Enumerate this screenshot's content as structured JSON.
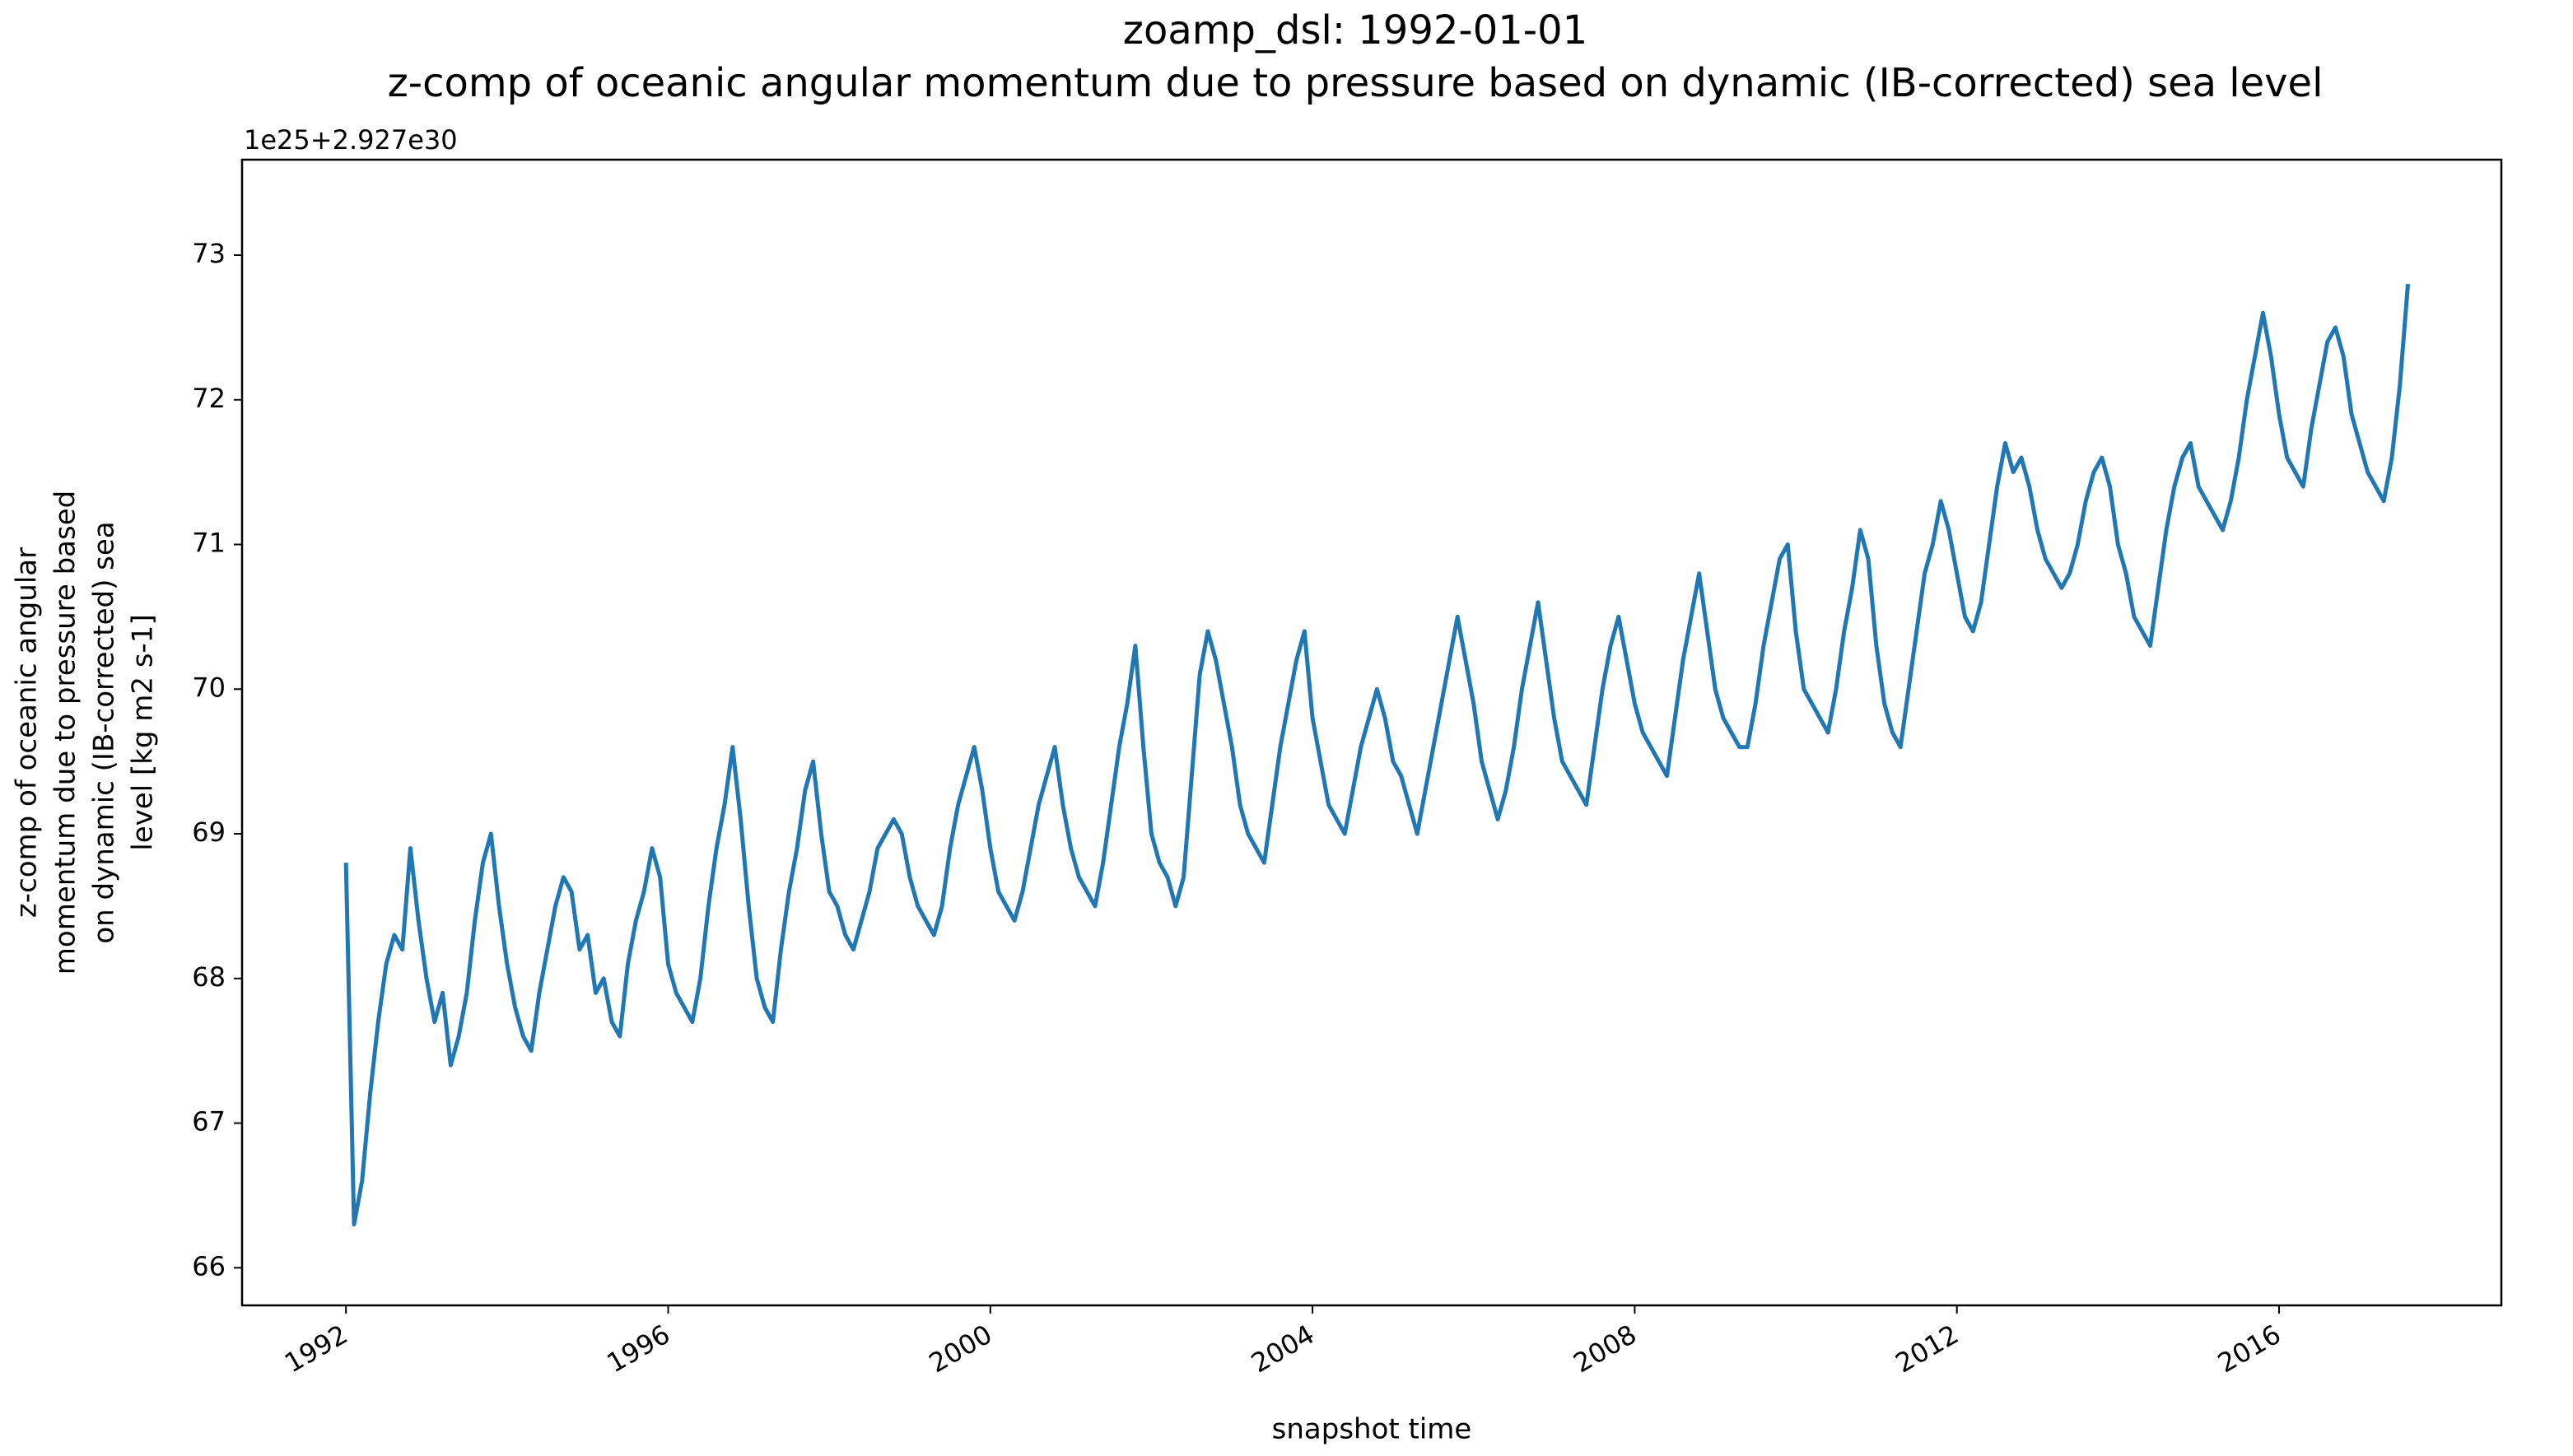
{
  "chart_data": {
    "type": "line",
    "title": "zoamp_dsl: 1992-01-01",
    "subtitle": "z-comp of oceanic angular momentum due to pressure based on dynamic (IB-corrected) sea level",
    "offset_label": "1e25+2.927e30",
    "xlabel": "snapshot time",
    "ylabel": [
      "z-comp of oceanic angular",
      "momentum due to pressure based",
      "on dynamic (IB-corrected) sea",
      "level [kg m2 s-1]"
    ],
    "color": "#1f77b4",
    "xlim": [
      1990.71,
      2018.76
    ],
    "ylim": [
      65.74,
      73.66
    ],
    "xticks": [
      1992,
      1996,
      2000,
      2004,
      2008,
      2012,
      2016
    ],
    "yticks": [
      66,
      67,
      68,
      69,
      70,
      71,
      72,
      73
    ],
    "x": [
      1992.0,
      1992.1,
      1992.2,
      1992.3,
      1992.4,
      1992.5,
      1992.6,
      1992.7,
      1992.8,
      1992.9,
      1993.0,
      1993.1,
      1993.2,
      1993.3,
      1993.4,
      1993.5,
      1993.6,
      1993.7,
      1993.8,
      1993.9,
      1994.0,
      1994.1,
      1994.2,
      1994.3,
      1994.4,
      1994.5,
      1994.6,
      1994.7,
      1994.8,
      1994.9,
      1995.0,
      1995.1,
      1995.2,
      1995.3,
      1995.4,
      1995.5,
      1995.6,
      1995.7,
      1995.8,
      1995.9,
      1996.0,
      1996.1,
      1996.2,
      1996.3,
      1996.4,
      1996.5,
      1996.6,
      1996.7,
      1996.8,
      1996.9,
      1997.0,
      1997.1,
      1997.2,
      1997.3,
      1997.4,
      1997.5,
      1997.6,
      1997.7,
      1997.8,
      1997.9,
      1998.0,
      1998.1,
      1998.2,
      1998.3,
      1998.4,
      1998.5,
      1998.6,
      1998.7,
      1998.8,
      1998.9,
      1999.0,
      1999.1,
      1999.2,
      1999.3,
      1999.4,
      1999.5,
      1999.6,
      1999.7,
      1999.8,
      1999.9,
      2000.0,
      2000.1,
      2000.2,
      2000.3,
      2000.4,
      2000.5,
      2000.6,
      2000.7,
      2000.8,
      2000.9,
      2001.0,
      2001.1,
      2001.2,
      2001.3,
      2001.4,
      2001.5,
      2001.6,
      2001.7,
      2001.8,
      2001.9,
      2002.0,
      2002.1,
      2002.2,
      2002.3,
      2002.4,
      2002.5,
      2002.6,
      2002.7,
      2002.8,
      2002.9,
      2003.0,
      2003.1,
      2003.2,
      2003.3,
      2003.4,
      2003.5,
      2003.6,
      2003.7,
      2003.8,
      2003.9,
      2004.0,
      2004.1,
      2004.2,
      2004.3,
      2004.4,
      2004.5,
      2004.6,
      2004.7,
      2004.8,
      2004.9,
      2005.0,
      2005.1,
      2005.2,
      2005.3,
      2005.4,
      2005.5,
      2005.6,
      2005.7,
      2005.8,
      2005.9,
      2006.0,
      2006.1,
      2006.2,
      2006.3,
      2006.4,
      2006.5,
      2006.6,
      2006.7,
      2006.8,
      2006.9,
      2007.0,
      2007.1,
      2007.2,
      2007.3,
      2007.4,
      2007.5,
      2007.6,
      2007.7,
      2007.8,
      2007.9,
      2008.0,
      2008.1,
      2008.2,
      2008.3,
      2008.4,
      2008.5,
      2008.6,
      2008.7,
      2008.8,
      2008.9,
      2009.0,
      2009.1,
      2009.2,
      2009.3,
      2009.4,
      2009.5,
      2009.6,
      2009.7,
      2009.8,
      2009.9,
      2010.0,
      2010.1,
      2010.2,
      2010.3,
      2010.4,
      2010.5,
      2010.6,
      2010.7,
      2010.8,
      2010.9,
      2011.0,
      2011.1,
      2011.2,
      2011.3,
      2011.4,
      2011.5,
      2011.6,
      2011.7,
      2011.8,
      2011.9,
      2012.0,
      2012.1,
      2012.2,
      2012.3,
      2012.4,
      2012.5,
      2012.6,
      2012.7,
      2012.8,
      2012.9,
      2013.0,
      2013.1,
      2013.2,
      2013.3,
      2013.4,
      2013.5,
      2013.6,
      2013.7,
      2013.8,
      2013.9,
      2014.0,
      2014.1,
      2014.2,
      2014.3,
      2014.4,
      2014.5,
      2014.6,
      2014.7,
      2014.8,
      2014.9,
      2015.0,
      2015.1,
      2015.2,
      2015.3,
      2015.4,
      2015.5,
      2015.6,
      2015.7,
      2015.8,
      2015.9,
      2016.0,
      2016.1,
      2016.2,
      2016.3,
      2016.4,
      2016.5,
      2016.6,
      2016.7,
      2016.8,
      2016.9,
      2017.0,
      2017.1,
      2017.2,
      2017.3,
      2017.4,
      2017.5,
      2017.6
    ],
    "values": [
      68.8,
      66.3,
      66.6,
      67.2,
      67.7,
      68.1,
      68.3,
      68.2,
      68.9,
      68.4,
      68.0,
      67.7,
      67.9,
      67.4,
      67.6,
      67.9,
      68.4,
      68.8,
      69.0,
      68.5,
      68.1,
      67.8,
      67.6,
      67.5,
      67.9,
      68.2,
      68.5,
      68.7,
      68.6,
      68.2,
      68.3,
      67.9,
      68.0,
      67.7,
      67.6,
      68.1,
      68.4,
      68.6,
      68.9,
      68.7,
      68.1,
      67.9,
      67.8,
      67.7,
      68.0,
      68.5,
      68.9,
      69.2,
      69.6,
      69.1,
      68.5,
      68.0,
      67.8,
      67.7,
      68.2,
      68.6,
      68.9,
      69.3,
      69.5,
      69.0,
      68.6,
      68.5,
      68.3,
      68.2,
      68.4,
      68.6,
      68.9,
      69.0,
      69.1,
      69.0,
      68.7,
      68.5,
      68.4,
      68.3,
      68.5,
      68.9,
      69.2,
      69.4,
      69.6,
      69.3,
      68.9,
      68.6,
      68.5,
      68.4,
      68.6,
      68.9,
      69.2,
      69.4,
      69.6,
      69.2,
      68.9,
      68.7,
      68.6,
      68.5,
      68.8,
      69.2,
      69.6,
      69.9,
      70.3,
      69.6,
      69.0,
      68.8,
      68.7,
      68.5,
      68.7,
      69.4,
      70.1,
      70.4,
      70.2,
      69.9,
      69.6,
      69.2,
      69.0,
      68.9,
      68.8,
      69.2,
      69.6,
      69.9,
      70.2,
      70.4,
      69.8,
      69.5,
      69.2,
      69.1,
      69.0,
      69.3,
      69.6,
      69.8,
      70.0,
      69.8,
      69.5,
      69.4,
      69.2,
      69.0,
      69.3,
      69.6,
      69.9,
      70.2,
      70.5,
      70.2,
      69.9,
      69.5,
      69.3,
      69.1,
      69.3,
      69.6,
      70.0,
      70.3,
      70.6,
      70.2,
      69.8,
      69.5,
      69.4,
      69.3,
      69.2,
      69.6,
      70.0,
      70.3,
      70.5,
      70.2,
      69.9,
      69.7,
      69.6,
      69.5,
      69.4,
      69.8,
      70.2,
      70.5,
      70.8,
      70.4,
      70.0,
      69.8,
      69.7,
      69.6,
      69.6,
      69.9,
      70.3,
      70.6,
      70.9,
      71.0,
      70.4,
      70.0,
      69.9,
      69.8,
      69.7,
      70.0,
      70.4,
      70.7,
      71.1,
      70.9,
      70.3,
      69.9,
      69.7,
      69.6,
      70.0,
      70.4,
      70.8,
      71.0,
      71.3,
      71.1,
      70.8,
      70.5,
      70.4,
      70.6,
      71.0,
      71.4,
      71.7,
      71.5,
      71.6,
      71.4,
      71.1,
      70.9,
      70.8,
      70.7,
      70.8,
      71.0,
      71.3,
      71.5,
      71.6,
      71.4,
      71.0,
      70.8,
      70.5,
      70.4,
      70.3,
      70.7,
      71.1,
      71.4,
      71.6,
      71.7,
      71.4,
      71.3,
      71.2,
      71.1,
      71.3,
      71.6,
      72.0,
      72.3,
      72.6,
      72.3,
      71.9,
      71.6,
      71.5,
      71.4,
      71.8,
      72.1,
      72.4,
      72.5,
      72.3,
      71.9,
      71.7,
      71.5,
      71.4,
      71.3,
      71.6,
      72.1,
      72.8
    ]
  }
}
